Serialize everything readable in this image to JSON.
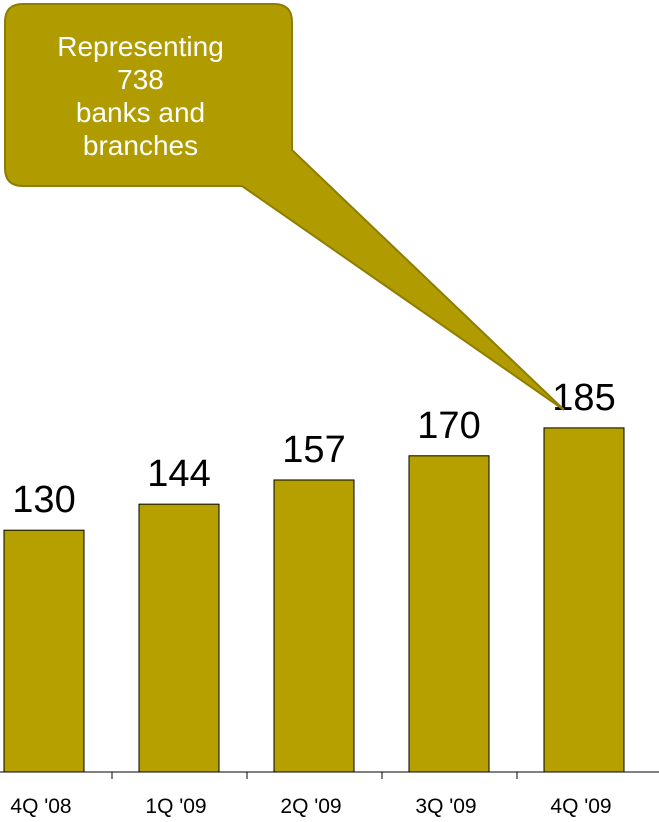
{
  "chart_data": {
    "type": "bar",
    "categories": [
      "4Q '08",
      "1Q '09",
      "2Q '09",
      "3Q '09",
      "4Q '09"
    ],
    "values": [
      130,
      144,
      157,
      170,
      185
    ],
    "data_labels": [
      "130",
      "144",
      "157",
      "170",
      "185"
    ],
    "ylim": [
      0,
      200
    ],
    "grid": false,
    "annotation": {
      "text": "Representing\n738\nbanks and\nbranches",
      "points_to": "4Q '09"
    }
  },
  "colors": {
    "bar_fill": "#b5a000",
    "bar_stroke": "#000000",
    "callout_fill": "#b09c00",
    "callout_stroke": "#8e7d00",
    "axis": "#000000",
    "label_text": "#000000",
    "callout_text": "#ffffff"
  }
}
